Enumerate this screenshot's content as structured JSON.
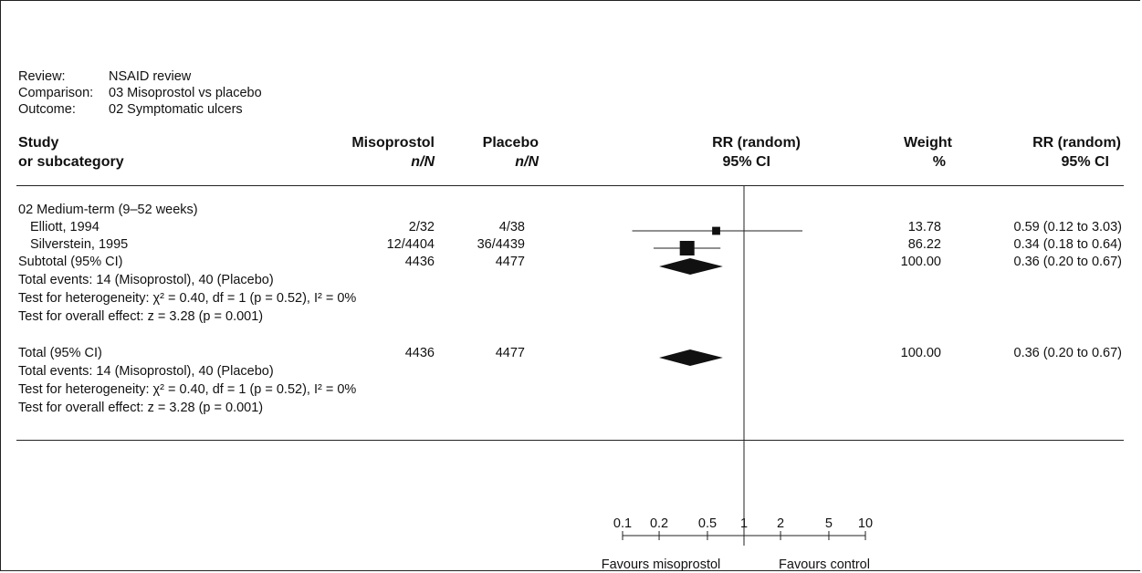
{
  "header": {
    "review_label": "Review:",
    "review_value": "NSAID review",
    "comparison_label": "Comparison:",
    "comparison_value": "03 Misoprostol vs placebo",
    "outcome_label": "Outcome:",
    "outcome_value": "02 Symptomatic ulcers"
  },
  "columns": {
    "study_line1": "Study",
    "study_line2": "or subcategory",
    "treat_line1": "Misoprostol",
    "treat_line2": "n/N",
    "control_line1": "Placebo",
    "control_line2": "n/N",
    "plot_line1": "RR (random)",
    "plot_line2": "95% CI",
    "weight_line1": "Weight",
    "weight_line2": "%",
    "rr_line1": "RR (random)",
    "rr_line2": "95% CI"
  },
  "subgroup": {
    "label": "02 Medium-term (9–52 weeks)",
    "subtotal": {
      "label": "Subtotal (95% CI)",
      "treat": "4436",
      "control": "4477",
      "weight": "100.00",
      "ci_text": "0.36 (0.20 to 0.67)"
    },
    "total_events": "Total events: 14 (Misoprostol), 40 (Placebo)",
    "heterogeneity": "Test for heterogeneity: χ² = 0.40, df = 1 (p = 0.52), I² = 0%",
    "overall": "Test for overall effect: z = 3.28 (p = 0.001)"
  },
  "total": {
    "label": "Total (95% CI)",
    "treat": "4436",
    "control": "4477",
    "weight": "100.00",
    "ci_text": "0.36 (0.20 to 0.67)",
    "total_events": "Total events: 14 (Misoprostol), 40 (Placebo)",
    "heterogeneity": "Test for heterogeneity: χ² = 0.40, df = 1 (p = 0.52), I² = 0%",
    "overall": "Test for overall effect: z = 3.28 (p = 0.001)"
  },
  "chart_data": {
    "type": "forest",
    "scale": "log",
    "xlim": [
      0.1,
      10
    ],
    "ticks": [
      {
        "value": 0.1,
        "label": "0.1"
      },
      {
        "value": 0.2,
        "label": "0.2"
      },
      {
        "value": 0.5,
        "label": "0.5"
      },
      {
        "value": 1,
        "label": "1"
      },
      {
        "value": 2,
        "label": "2"
      },
      {
        "value": 5,
        "label": "5"
      },
      {
        "value": 10,
        "label": "10"
      }
    ],
    "reference_line": 1,
    "favours_left": "Favours misoprostol",
    "favours_right": "Favours control",
    "studies": [
      {
        "name": "Elliott, 1994",
        "treat": "2/32",
        "control": "4/38",
        "rr": 0.59,
        "lower": 0.12,
        "upper": 3.03,
        "weight": 13.78,
        "weight_text": "13.78",
        "ci_text": "0.59 (0.12 to 3.03)"
      },
      {
        "name": "Silverstein, 1995",
        "treat": "12/4404",
        "control": "36/4439",
        "rr": 0.34,
        "lower": 0.18,
        "upper": 0.64,
        "weight": 86.22,
        "weight_text": "86.22",
        "ci_text": "0.34 (0.18 to 0.64)"
      }
    ],
    "pooled": [
      {
        "name": "Subtotal (95% CI)",
        "rr": 0.36,
        "lower": 0.2,
        "upper": 0.67
      },
      {
        "name": "Total (95% CI)",
        "rr": 0.36,
        "lower": 0.2,
        "upper": 0.67
      }
    ]
  }
}
